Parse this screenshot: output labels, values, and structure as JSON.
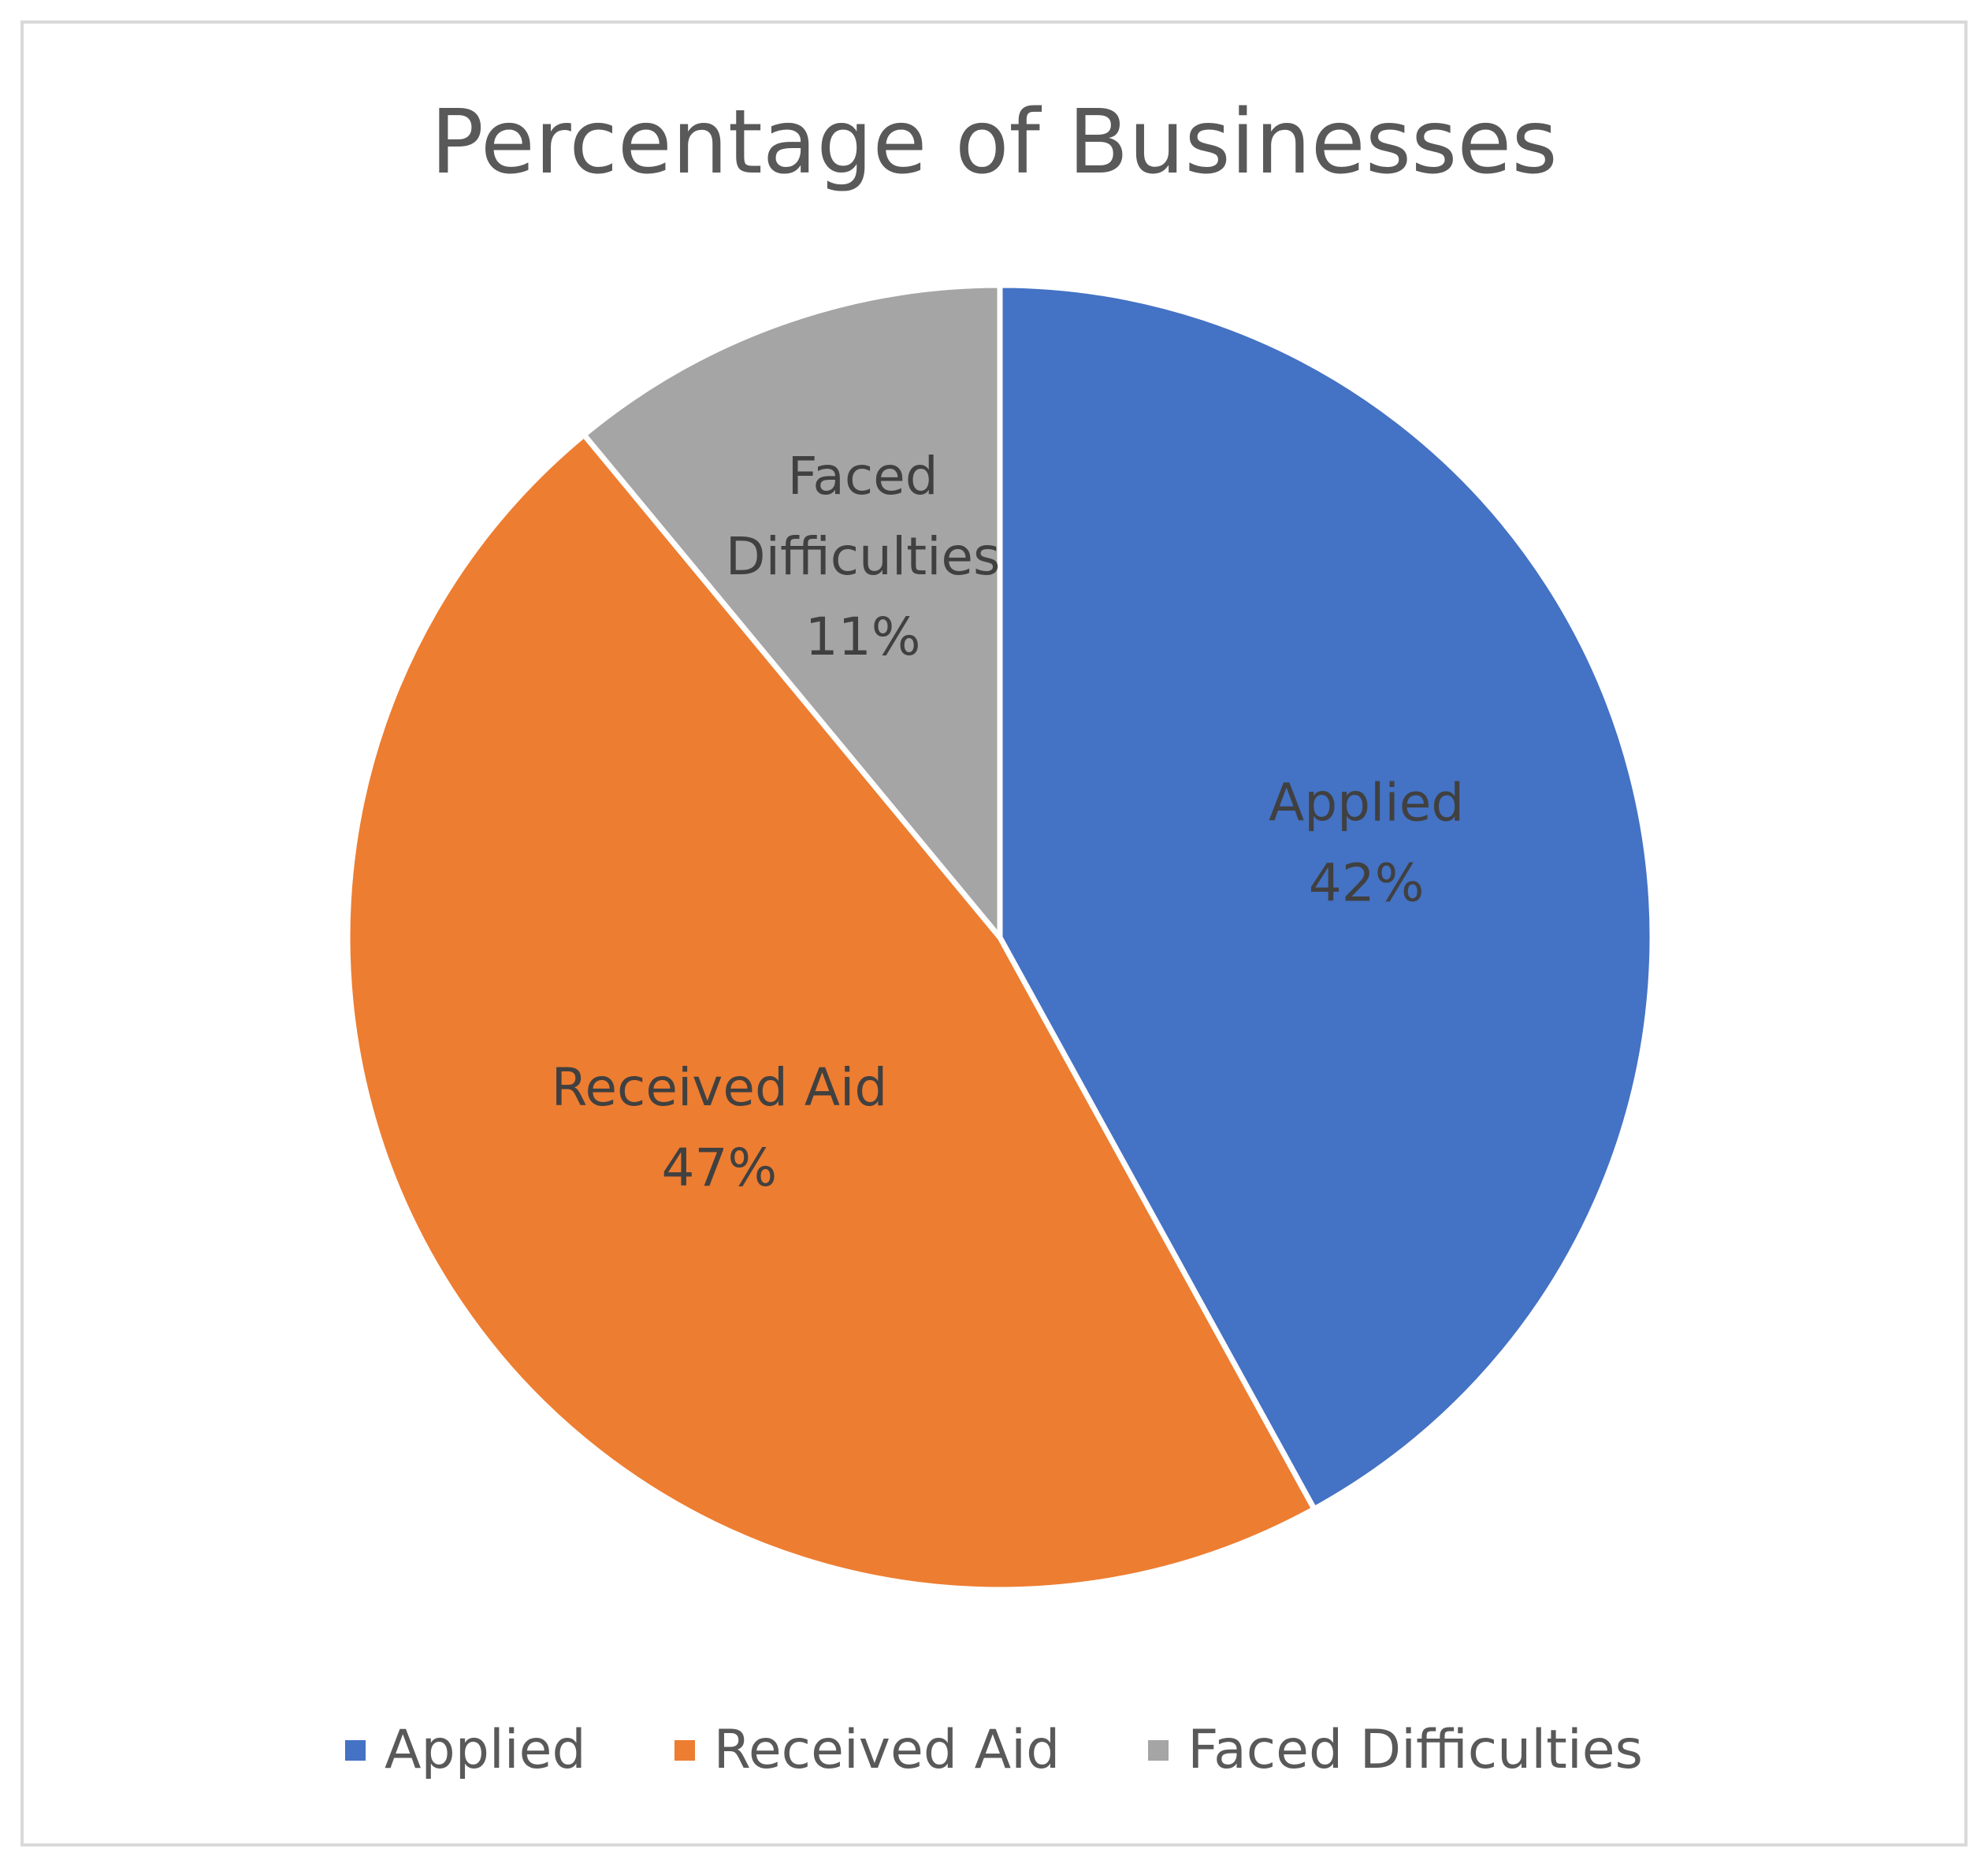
{
  "chart_data": {
    "type": "pie",
    "title": "Percentage of Businesses",
    "categories": [
      "Applied",
      "Received Aid",
      "Faced Difficulties"
    ],
    "values": [
      42,
      47,
      11
    ],
    "data_labels": [
      [
        "Applied",
        "42%"
      ],
      [
        "Received Aid",
        "47%"
      ],
      [
        "Faced Difficulties",
        "11%"
      ]
    ],
    "data_label_lines": [
      [
        "Applied",
        "42%"
      ],
      [
        "Received Aid",
        "47%"
      ],
      [
        "Faced",
        "Difficulties",
        "11%"
      ]
    ],
    "colors": [
      "#4472c4",
      "#ed7d31",
      "#a5a5a5"
    ],
    "start_angle": "12 o'clock",
    "direction": "clockwise",
    "legend_position": "bottom"
  },
  "legend": {
    "items": [
      {
        "label": "Applied",
        "color": "#4472c4"
      },
      {
        "label": "Received Aid",
        "color": "#ed7d31"
      },
      {
        "label": "Faced Difficulties",
        "color": "#a5a5a5"
      }
    ]
  }
}
